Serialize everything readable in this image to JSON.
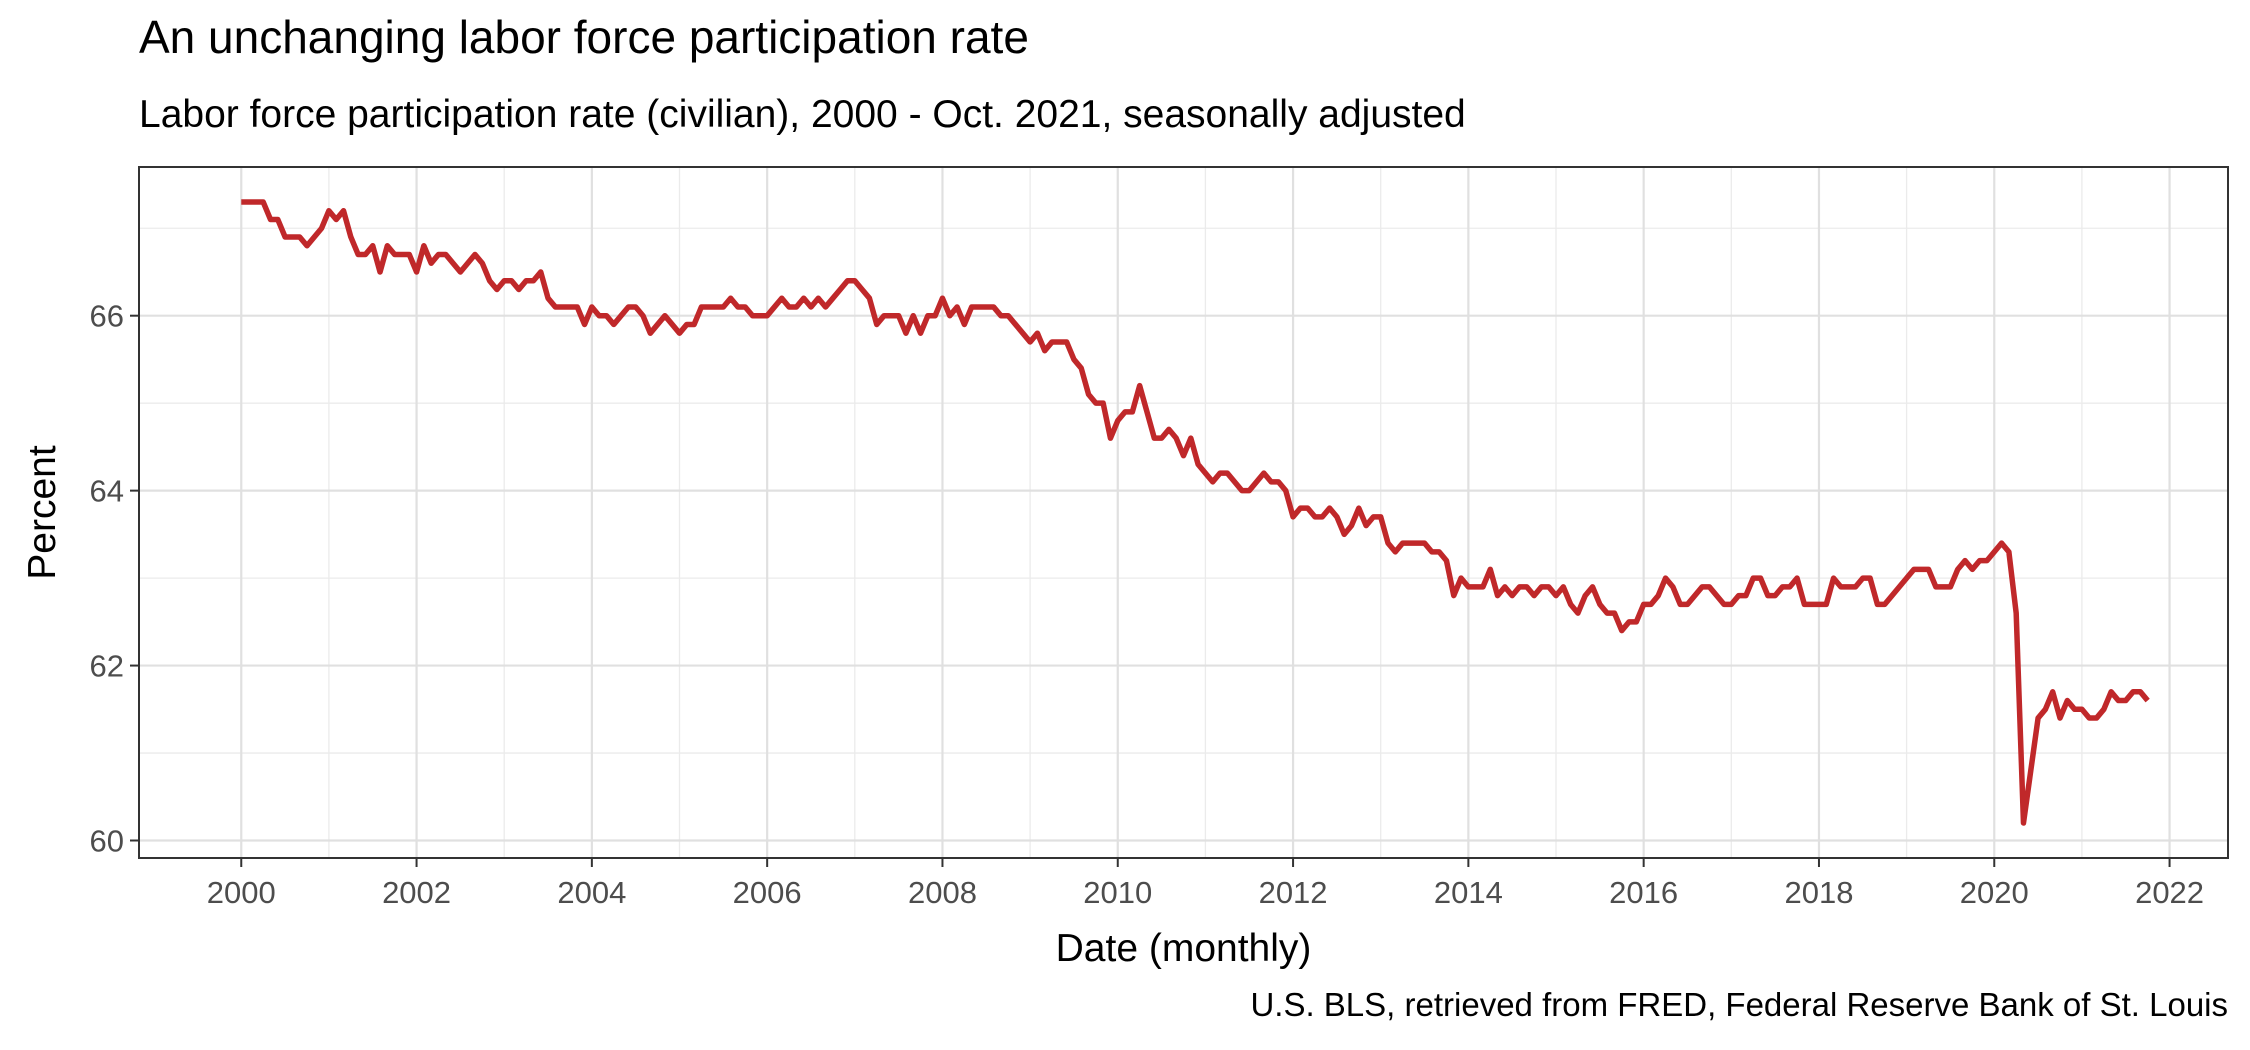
{
  "chart_data": {
    "type": "line",
    "title": "An unchanging labor force participation rate",
    "subtitle": "Labor force participation rate (civilian), 2000 - Oct. 2021, seasonally adjusted",
    "caption": "U.S. BLS, retrieved from FRED, Federal Reserve Bank of St. Louis",
    "xlabel": "Date (monthly)",
    "ylabel": "Percent",
    "xlim": [
      "1998-11-01",
      "2022-09-01"
    ],
    "ylim": [
      59.8,
      67.7
    ],
    "x_ticks": [
      2000,
      2002,
      2004,
      2006,
      2008,
      2010,
      2012,
      2014,
      2016,
      2018,
      2020,
      2022
    ],
    "y_ticks": [
      60,
      62,
      64,
      66
    ],
    "grid": true,
    "line_color": "#c0282a",
    "series": [
      {
        "start": "2000-01",
        "frequency": "monthly",
        "values": [
          67.3,
          67.3,
          67.3,
          67.3,
          67.1,
          67.1,
          66.9,
          66.9,
          66.9,
          66.8,
          66.9,
          67.0,
          67.2,
          67.1,
          67.2,
          66.9,
          66.7,
          66.7,
          66.8,
          66.5,
          66.8,
          66.7,
          66.7,
          66.7,
          66.5,
          66.8,
          66.6,
          66.7,
          66.7,
          66.6,
          66.5,
          66.6,
          66.7,
          66.6,
          66.4,
          66.3,
          66.4,
          66.4,
          66.3,
          66.4,
          66.4,
          66.5,
          66.2,
          66.1,
          66.1,
          66.1,
          66.1,
          65.9,
          66.1,
          66.0,
          66.0,
          65.9,
          66.0,
          66.1,
          66.1,
          66.0,
          65.8,
          65.9,
          66.0,
          65.9,
          65.8,
          65.9,
          65.9,
          66.1,
          66.1,
          66.1,
          66.1,
          66.2,
          66.1,
          66.1,
          66.0,
          66.0,
          66.0,
          66.1,
          66.2,
          66.1,
          66.1,
          66.2,
          66.1,
          66.2,
          66.1,
          66.2,
          66.3,
          66.4,
          66.4,
          66.3,
          66.2,
          65.9,
          66.0,
          66.0,
          66.0,
          65.8,
          66.0,
          65.8,
          66.0,
          66.0,
          66.2,
          66.0,
          66.1,
          65.9,
          66.1,
          66.1,
          66.1,
          66.1,
          66.0,
          66.0,
          65.9,
          65.8,
          65.7,
          65.8,
          65.6,
          65.7,
          65.7,
          65.7,
          65.5,
          65.4,
          65.1,
          65.0,
          65.0,
          64.6,
          64.8,
          64.9,
          64.9,
          65.2,
          64.9,
          64.6,
          64.6,
          64.7,
          64.6,
          64.4,
          64.6,
          64.3,
          64.2,
          64.1,
          64.2,
          64.2,
          64.1,
          64.0,
          64.0,
          64.1,
          64.2,
          64.1,
          64.1,
          64.0,
          63.7,
          63.8,
          63.8,
          63.7,
          63.7,
          63.8,
          63.7,
          63.5,
          63.6,
          63.8,
          63.6,
          63.7,
          63.7,
          63.4,
          63.3,
          63.4,
          63.4,
          63.4,
          63.4,
          63.3,
          63.3,
          63.2,
          62.8,
          63.0,
          62.9,
          62.9,
          62.9,
          63.1,
          62.8,
          62.9,
          62.8,
          62.9,
          62.9,
          62.8,
          62.9,
          62.9,
          62.8,
          62.9,
          62.7,
          62.6,
          62.8,
          62.9,
          62.7,
          62.6,
          62.6,
          62.4,
          62.5,
          62.5,
          62.7,
          62.7,
          62.8,
          63.0,
          62.9,
          62.7,
          62.7,
          62.8,
          62.9,
          62.9,
          62.8,
          62.7,
          62.7,
          62.8,
          62.8,
          63.0,
          63.0,
          62.8,
          62.8,
          62.9,
          62.9,
          63.0,
          62.7,
          62.7,
          62.7,
          62.7,
          63.0,
          62.9,
          62.9,
          62.9,
          63.0,
          63.0,
          62.7,
          62.7,
          62.8,
          62.9,
          63.0,
          63.1,
          63.1,
          63.1,
          62.9,
          62.9,
          62.9,
          63.1,
          63.2,
          63.1,
          63.2,
          63.2,
          63.3,
          63.4,
          63.3,
          62.6,
          60.2,
          60.8,
          61.4,
          61.5,
          61.7,
          61.4,
          61.6,
          61.5,
          61.5,
          61.4,
          61.4,
          61.5,
          61.7,
          61.6,
          61.6,
          61.7,
          61.7,
          61.6
        ]
      }
    ]
  }
}
